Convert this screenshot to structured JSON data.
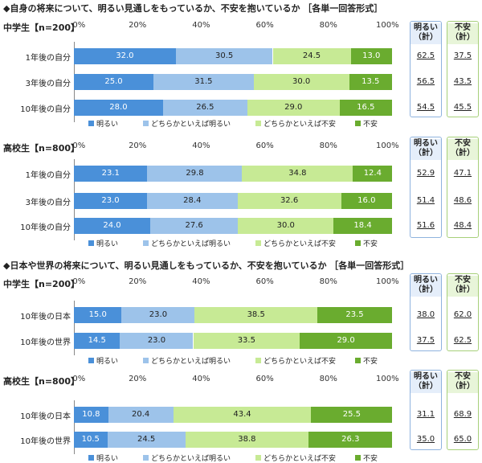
{
  "legend": [
    "明るい",
    "どちらかといえば明るい",
    "どちらかといえば不安",
    "不安"
  ],
  "colors": {
    "bright": "#4a90d9",
    "some_bright": "#9dc3ea",
    "some_anxious": "#c7ea95",
    "anxious": "#6aac2f"
  },
  "summary_headers": {
    "bright": "明るい\n（計）",
    "anxious": "不安\n（計）"
  },
  "chart_data": [
    {
      "type": "bar",
      "stacked": true,
      "orientation": "horizontal",
      "title": "◆自身の将来について、明るい見通しをもっているか、不安を抱いているか ［各単一回答形式］",
      "group": "中学生【n=200】",
      "ticks": [
        "0%",
        "20%",
        "40%",
        "60%",
        "80%",
        "100%"
      ],
      "categories": [
        "1年後の自分",
        "3年後の自分",
        "10年後の自分"
      ],
      "series": [
        {
          "name": "明るい",
          "values": [
            32.0,
            25.0,
            28.0
          ]
        },
        {
          "name": "どちらかといえば明るい",
          "values": [
            30.5,
            31.5,
            26.5
          ]
        },
        {
          "name": "どちらかといえば不安",
          "values": [
            24.5,
            30.0,
            29.0
          ]
        },
        {
          "name": "不安",
          "values": [
            13.0,
            13.5,
            16.5
          ]
        }
      ],
      "bright_total": [
        62.5,
        56.5,
        54.5
      ],
      "anxious_total": [
        37.5,
        43.5,
        45.5
      ]
    },
    {
      "type": "bar",
      "stacked": true,
      "orientation": "horizontal",
      "title": "",
      "group": "高校生【n=800】",
      "ticks": [
        "0%",
        "20%",
        "40%",
        "60%",
        "80%",
        "100%"
      ],
      "categories": [
        "1年後の自分",
        "3年後の自分",
        "10年後の自分"
      ],
      "series": [
        {
          "name": "明るい",
          "values": [
            23.1,
            23.0,
            24.0
          ]
        },
        {
          "name": "どちらかといえば明るい",
          "values": [
            29.8,
            28.4,
            27.6
          ]
        },
        {
          "name": "どちらかといえば不安",
          "values": [
            34.8,
            32.6,
            30.0
          ]
        },
        {
          "name": "不安",
          "values": [
            12.4,
            16.0,
            18.4
          ]
        }
      ],
      "bright_total": [
        52.9,
        51.4,
        51.6
      ],
      "anxious_total": [
        47.1,
        48.6,
        48.4
      ]
    },
    {
      "type": "bar",
      "stacked": true,
      "orientation": "horizontal",
      "title": "◆日本や世界の将来について、明るい見通しをもっているか、不安を抱いているか ［各単一回答形式］",
      "group": "中学生【n=200】",
      "ticks": [
        "0%",
        "20%",
        "40%",
        "60%",
        "80%",
        "100%"
      ],
      "categories": [
        "10年後の日本",
        "10年後の世界"
      ],
      "series": [
        {
          "name": "明るい",
          "values": [
            15.0,
            14.5
          ]
        },
        {
          "name": "どちらかといえば明るい",
          "values": [
            23.0,
            23.0
          ]
        },
        {
          "name": "どちらかといえば不安",
          "values": [
            38.5,
            33.5
          ]
        },
        {
          "name": "不安",
          "values": [
            23.5,
            29.0
          ]
        }
      ],
      "bright_total": [
        38.0,
        37.5
      ],
      "anxious_total": [
        62.0,
        62.5
      ]
    },
    {
      "type": "bar",
      "stacked": true,
      "orientation": "horizontal",
      "title": "",
      "group": "高校生【n=800】",
      "ticks": [
        "0%",
        "20%",
        "40%",
        "60%",
        "80%",
        "100%"
      ],
      "categories": [
        "10年後の日本",
        "10年後の世界"
      ],
      "series": [
        {
          "name": "明るい",
          "values": [
            10.8,
            10.5
          ]
        },
        {
          "name": "どちらかといえば明るい",
          "values": [
            20.4,
            24.5
          ]
        },
        {
          "name": "どちらかといえば不安",
          "values": [
            43.4,
            38.8
          ]
        },
        {
          "name": "不安",
          "values": [
            25.5,
            26.3
          ]
        }
      ],
      "bright_total": [
        31.1,
        35.0
      ],
      "anxious_total": [
        68.9,
        65.0
      ]
    }
  ]
}
